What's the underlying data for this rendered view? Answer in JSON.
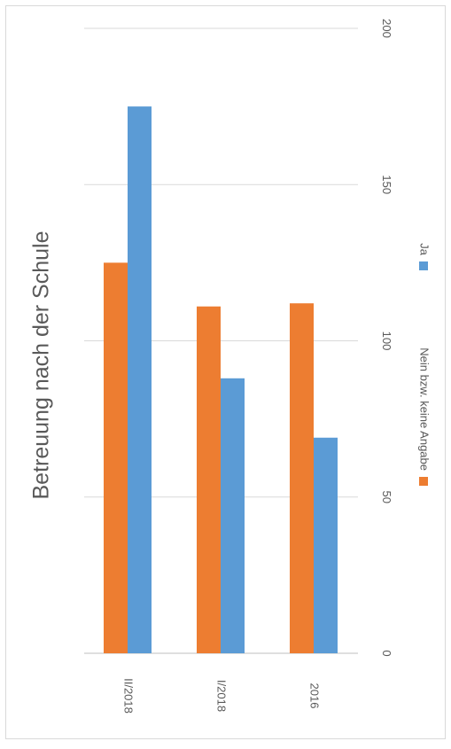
{
  "chart_data": {
    "type": "bar",
    "title": "Betreuung nach der Schule",
    "categories": [
      "II/2018",
      "I/2018",
      "2016"
    ],
    "series": [
      {
        "name": "Nein bzw. keine Angabe",
        "color": "#ed7d31",
        "values": [
          125,
          111,
          112
        ]
      },
      {
        "name": "Ja",
        "color": "#5b9bd5",
        "values": [
          175,
          88,
          69
        ]
      }
    ],
    "ylim": [
      0,
      200
    ],
    "yticks": [
      0,
      50,
      100,
      150,
      200
    ],
    "grid": true,
    "legend_position": "bottom",
    "orientation": "rotated-90"
  }
}
